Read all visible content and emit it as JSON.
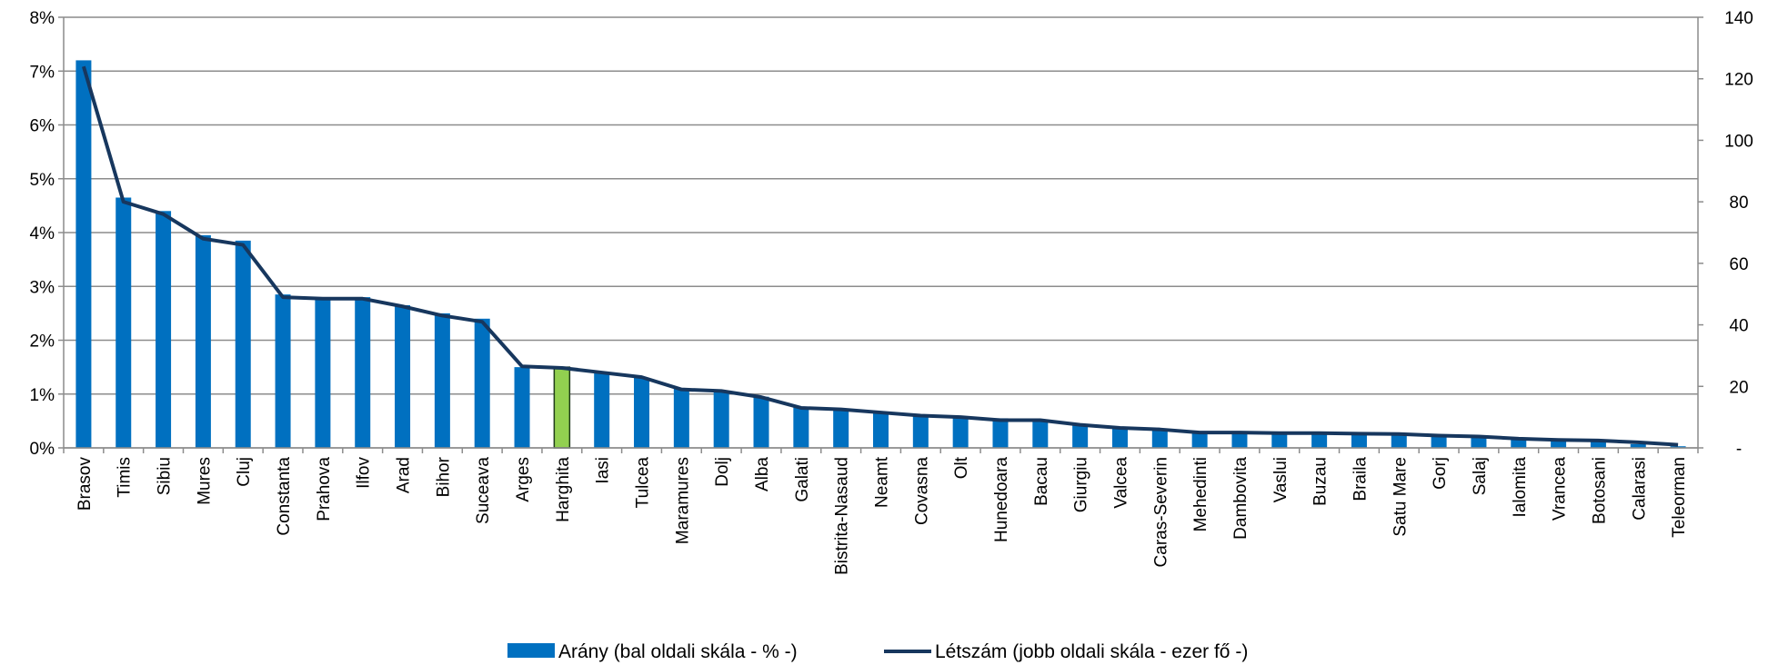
{
  "chart_data": {
    "type": "bar",
    "categories": [
      "Brasov",
      "Timis",
      "Sibiu",
      "Mures",
      "Cluj",
      "Constanta",
      "Prahova",
      "Ilfov",
      "Arad",
      "Bihor",
      "Suceava",
      "Arges",
      "Harghita",
      "Iasi",
      "Tulcea",
      "Maramures",
      "Dolj",
      "Alba",
      "Galati",
      "Bistrita-Nasaud",
      "Neamt",
      "Covasna",
      "Olt",
      "Hunedoara",
      "Bacau",
      "Giurgiu",
      "Valcea",
      "Caras-Severin",
      "Mehedinti",
      "Dambovita",
      "Vaslui",
      "Buzau",
      "Braila",
      "Satu Mare",
      "Gorj",
      "Salaj",
      "Ialomita",
      "Vrancea",
      "Botosani",
      "Calarasi",
      "Teleorman"
    ],
    "series": [
      {
        "name": "Arány (bal oldali skála - % -)",
        "type": "bar",
        "axis": "y",
        "color": "#0070c0",
        "colors": [
          "#0070c0",
          "#0070c0",
          "#0070c0",
          "#0070c0",
          "#0070c0",
          "#0070c0",
          "#0070c0",
          "#0070c0",
          "#0070c0",
          "#0070c0",
          "#0070c0",
          "#0070c0",
          "#92d050",
          "#0070c0",
          "#0070c0",
          "#0070c0",
          "#0070c0",
          "#0070c0",
          "#0070c0",
          "#0070c0",
          "#0070c0",
          "#0070c0",
          "#0070c0",
          "#0070c0",
          "#0070c0",
          "#0070c0",
          "#0070c0",
          "#0070c0",
          "#0070c0",
          "#0070c0",
          "#0070c0",
          "#0070c0",
          "#0070c0",
          "#0070c0",
          "#0070c0",
          "#0070c0",
          "#0070c0",
          "#0070c0",
          "#0070c0",
          "#0070c0",
          "#0070c0"
        ],
        "values": [
          7.2,
          4.65,
          4.4,
          3.95,
          3.85,
          2.85,
          2.8,
          2.8,
          2.65,
          2.5,
          2.4,
          1.5,
          1.5,
          1.4,
          1.3,
          1.1,
          1.05,
          0.95,
          0.75,
          0.7,
          0.65,
          0.6,
          0.58,
          0.55,
          0.52,
          0.42,
          0.38,
          0.33,
          0.3,
          0.3,
          0.28,
          0.28,
          0.27,
          0.26,
          0.22,
          0.2,
          0.16,
          0.14,
          0.12,
          0.07,
          0.03
        ]
      },
      {
        "name": "Létszám (jobb oldali skála - ezer fő -)",
        "type": "line",
        "axis": "y2",
        "color": "#17375e",
        "values": [
          124,
          80,
          76,
          68,
          66,
          49,
          48.5,
          48.5,
          46,
          43,
          41,
          26.5,
          26,
          24.5,
          23,
          19,
          18.5,
          16.5,
          13,
          12.5,
          11.5,
          10.5,
          10,
          9,
          9,
          7.5,
          6.5,
          6,
          5,
          5,
          4.8,
          4.8,
          4.6,
          4.5,
          4,
          3.7,
          3,
          2.6,
          2.4,
          1.8,
          1
        ]
      }
    ],
    "ylim": [
      0,
      8
    ],
    "yticks": [
      {
        "value": 0,
        "label": "0%"
      },
      {
        "value": 1,
        "label": "1%"
      },
      {
        "value": 2,
        "label": "2%"
      },
      {
        "value": 3,
        "label": "3%"
      },
      {
        "value": 4,
        "label": "4%"
      },
      {
        "value": 5,
        "label": "5%"
      },
      {
        "value": 6,
        "label": "6%"
      },
      {
        "value": 7,
        "label": "7%"
      },
      {
        "value": 8,
        "label": "8%"
      }
    ],
    "y2lim": [
      0,
      140
    ],
    "y2ticks": [
      {
        "value": 0,
        "label": "-"
      },
      20,
      40,
      60,
      80,
      100,
      120,
      140
    ],
    "grid": true,
    "legend": "bottom"
  }
}
